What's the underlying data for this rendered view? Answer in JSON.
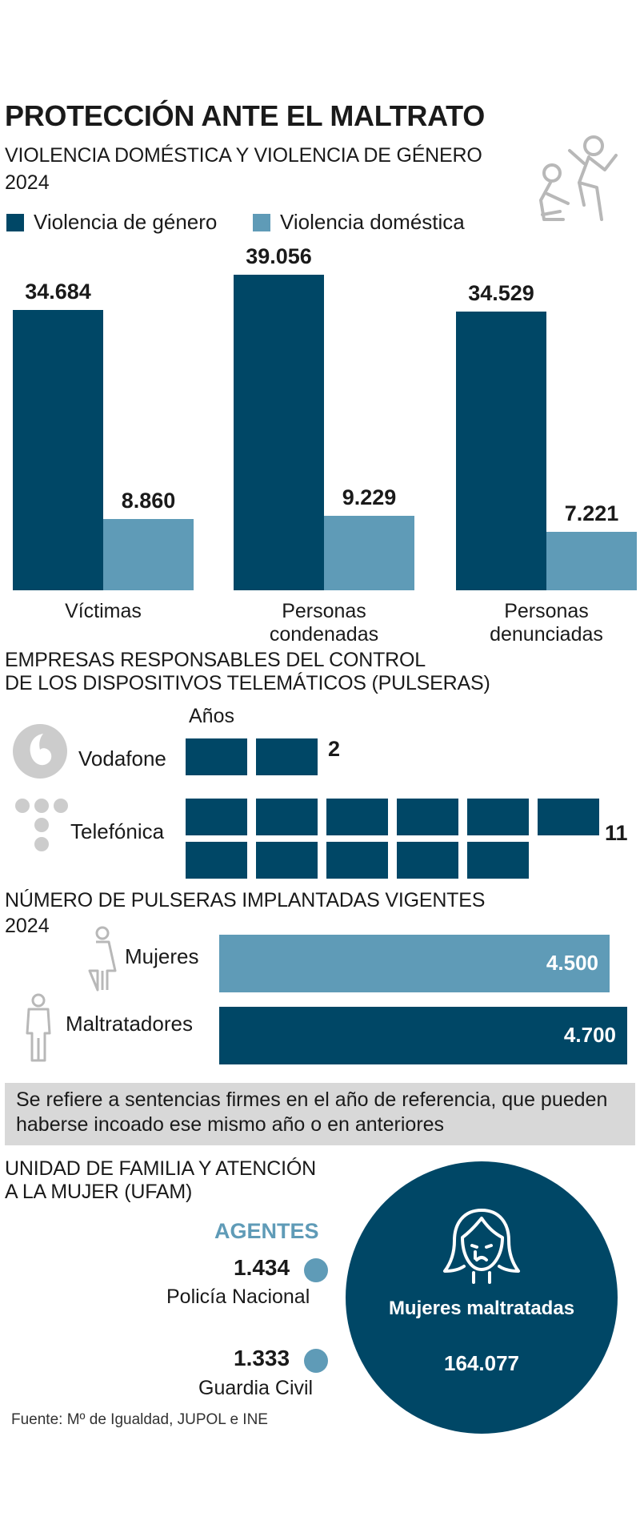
{
  "title": "PROTECCIÓN ANTE EL MALTRATO",
  "section1": {
    "title": "VIOLENCIA DOMÉSTICA Y VIOLENCIA DE GÉNERO",
    "year": "2024",
    "legend": [
      "Violencia de género",
      "Violencia doméstica"
    ],
    "icon": "violence-icon"
  },
  "section2": {
    "title_line1": "EMPRESAS RESPONSABLES DEL CONTROL",
    "title_line2": "DE LOS DISPOSITIVOS TELEMÁTICOS (PULSERAS)",
    "unit": "Años",
    "rows": [
      {
        "company": "Vodafone",
        "value": "2",
        "years": 2,
        "logo": "vodafone-logo"
      },
      {
        "company": "Telefónica",
        "value": "11",
        "years": 11,
        "logo": "telefonica-logo"
      }
    ]
  },
  "section3": {
    "title": "NÚMERO DE PULSERAS IMPLANTADAS VIGENTES",
    "year": "2024",
    "rows": [
      {
        "label": "Mujeres",
        "value_label": "4.500",
        "icon": "woman-icon"
      },
      {
        "label": "Maltratadores",
        "value_label": "4.700",
        "icon": "man-icon"
      }
    ]
  },
  "note": "Se refiere a sentencias firmes en el año de referencia, que pueden haberse incoado ese mismo año o en anteriores",
  "section4": {
    "title_line1": "UNIDAD DE FAMILIA Y ATENCIÓN",
    "title_line2": "A LA MUJER (UFAM)",
    "agents_label": "AGENTES",
    "agents": [
      {
        "value": "1.434",
        "label": "Policía Nacional"
      },
      {
        "value": "1.333",
        "label": "Guardia Civil"
      }
    ],
    "circle_label": "Mujeres maltratadas",
    "circle_value": "164.077",
    "circle_icon": "crying-woman-icon"
  },
  "source": "Fuente: Mº de Igualdad, JUPOL e INE",
  "colors": {
    "genero": "#004766",
    "domestica": "#5f9bb7",
    "note_bg": "#d8d8d8",
    "agents_label": "#5f9bb7",
    "icon_gray": "#b8b8b8"
  },
  "chart_data": [
    {
      "type": "bar",
      "categories": [
        "Víctimas",
        "Personas condenadas",
        "Personas denunciadas"
      ],
      "series": [
        {
          "name": "Violencia de género",
          "values": [
            34684,
            39056,
            34529
          ],
          "labels": [
            "34.684",
            "39.056",
            "34.529"
          ]
        },
        {
          "name": "Violencia doméstica",
          "values": [
            8860,
            9229,
            7221
          ],
          "labels": [
            "8.860",
            "9.229",
            "7.221"
          ]
        }
      ],
      "ylim": [
        0,
        39056
      ],
      "grid": false,
      "legend": "top"
    },
    {
      "type": "bar",
      "orientation": "horizontal",
      "categories": [
        "Mujeres",
        "Maltratadores"
      ],
      "values": [
        4500,
        4700
      ],
      "xlim": [
        0,
        4700
      ]
    }
  ]
}
